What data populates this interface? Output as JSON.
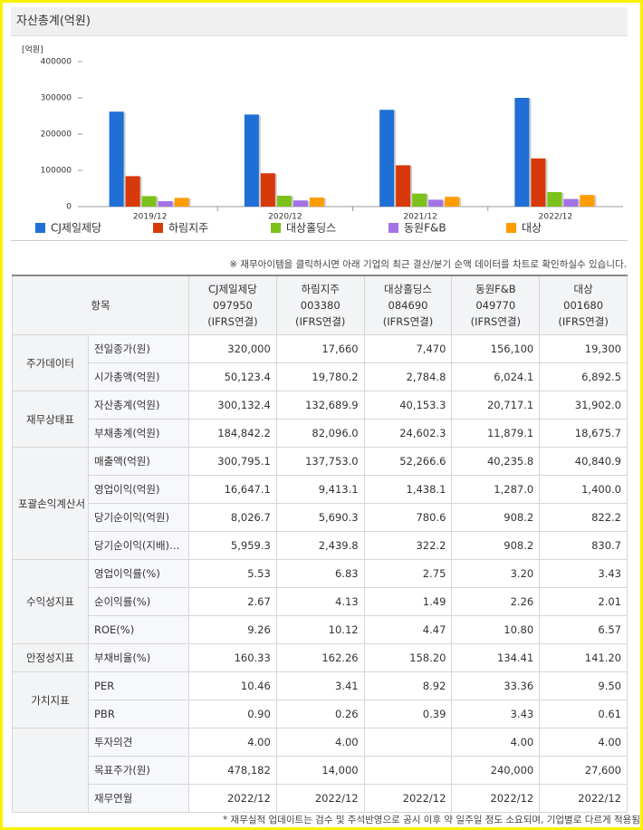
{
  "chart_data": {
    "type": "bar",
    "title": "자산총계(억원)",
    "y_unit": "[억원]",
    "categories": [
      "2019/12",
      "2020/12",
      "2021/12",
      "2022/12"
    ],
    "series": [
      {
        "name": "CJ제일제당",
        "color": "#1f6fd6",
        "values": [
          262000,
          254000,
          267000,
          300000
        ]
      },
      {
        "name": "하림지주",
        "color": "#d8390b",
        "values": [
          84000,
          92000,
          114000,
          133000
        ]
      },
      {
        "name": "대상홀딩스",
        "color": "#7dc11b",
        "values": [
          29000,
          30000,
          36000,
          40000
        ]
      },
      {
        "name": "동원F&B",
        "color": "#a373e6",
        "values": [
          15000,
          17000,
          19000,
          21000
        ]
      },
      {
        "name": "대상",
        "color": "#ff9c00",
        "values": [
          24000,
          25000,
          27000,
          32000
        ]
      }
    ],
    "ylim": [
      0,
      400000
    ],
    "yticks": [
      0,
      100000,
      200000,
      300000,
      400000
    ],
    "grid": false,
    "legend": "bottom"
  },
  "note": "※ 재무아이템을 클릭하시면 아래 기업의 최근 결산/분기 순액 데이터를 차트로 확인하실수 있습니다.",
  "table": {
    "header_label": "항목",
    "columns": [
      {
        "name": "CJ제일제당",
        "code": "097950",
        "basis": "(IFRS연결)"
      },
      {
        "name": "하림지주",
        "code": "003380",
        "basis": "(IFRS연결)"
      },
      {
        "name": "대상홀딩스",
        "code": "084690",
        "basis": "(IFRS연결)"
      },
      {
        "name": "동원F&B",
        "code": "049770",
        "basis": "(IFRS연결)"
      },
      {
        "name": "대상",
        "code": "001680",
        "basis": "(IFRS연결)"
      }
    ],
    "groups": [
      {
        "label": "주가데이터",
        "rows": [
          {
            "label": "전일종가(원)",
            "values": [
              "320,000",
              "17,660",
              "7,470",
              "156,100",
              "19,300"
            ]
          },
          {
            "label": "시가총액(억원)",
            "values": [
              "50,123.4",
              "19,780.2",
              "2,784.8",
              "6,024.1",
              "6,892.5"
            ]
          }
        ]
      },
      {
        "label": "재무상태표",
        "rows": [
          {
            "label": "자산총계(억원)",
            "values": [
              "300,132.4",
              "132,689.9",
              "40,153.3",
              "20,717.1",
              "31,902.0"
            ]
          },
          {
            "label": "부채총계(억원)",
            "values": [
              "184,842.2",
              "82,096.0",
              "24,602.3",
              "11,879.1",
              "18,675.7"
            ]
          }
        ]
      },
      {
        "label": "포괄손익계산서",
        "rows": [
          {
            "label": "매출액(억원)",
            "values": [
              "300,795.1",
              "137,753.0",
              "52,266.6",
              "40,235.8",
              "40,840.9"
            ]
          },
          {
            "label": "영업이익(억원)",
            "values": [
              "16,647.1",
              "9,413.1",
              "1,438.1",
              "1,287.0",
              "1,400.0"
            ]
          },
          {
            "label": "당기순이익(억원)",
            "values": [
              "8,026.7",
              "5,690.3",
              "780.6",
              "908.2",
              "822.2"
            ]
          },
          {
            "label": "당기순이익(지배)…",
            "values": [
              "5,959.3",
              "2,439.8",
              "322.2",
              "908.2",
              "830.7"
            ]
          }
        ]
      },
      {
        "label": "수익성지표",
        "rows": [
          {
            "label": "영업이익률(%)",
            "values": [
              "5.53",
              "6.83",
              "2.75",
              "3.20",
              "3.43"
            ]
          },
          {
            "label": "순이익률(%)",
            "values": [
              "2.67",
              "4.13",
              "1.49",
              "2.26",
              "2.01"
            ]
          },
          {
            "label": "ROE(%)",
            "values": [
              "9.26",
              "10.12",
              "4.47",
              "10.80",
              "6.57"
            ]
          }
        ]
      },
      {
        "label": "안정성지표",
        "rows": [
          {
            "label": "부채비율(%)",
            "values": [
              "160.33",
              "162.26",
              "158.20",
              "134.41",
              "141.20"
            ]
          }
        ]
      },
      {
        "label": "가치지표",
        "rows": [
          {
            "label": "PER",
            "values": [
              "10.46",
              "3.41",
              "8.92",
              "33.36",
              "9.50"
            ]
          },
          {
            "label": "PBR",
            "values": [
              "0.90",
              "0.26",
              "0.39",
              "3.43",
              "0.61"
            ]
          }
        ]
      },
      {
        "rows": [
          {
            "label": "투자의견",
            "values": [
              "4.00",
              "4.00",
              null,
              "4.00",
              "4.00"
            ]
          },
          {
            "label": "목표주가(원)",
            "values": [
              "478,182",
              "14,000",
              null,
              "240,000",
              "27,600"
            ]
          },
          {
            "label": "재무연월",
            "values": [
              "2022/12",
              "2022/12",
              "2022/12",
              "2022/12",
              "2022/12"
            ]
          }
        ]
      }
    ]
  },
  "footnote": "* 재무실적 업데이트는 검수 및 주석반영으로 공시 이후 약 일주일 정도 소요되며, 기업별로 다르게 적용됨"
}
